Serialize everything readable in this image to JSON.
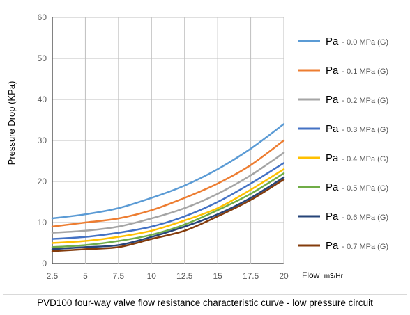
{
  "chart_data": {
    "type": "line",
    "title": "",
    "caption": "PVD100 four-way valve flow resistance characteristic curve - low pressure circuit",
    "xlabel": "Flow",
    "xlabel_unit": "m3/Hr",
    "ylabel": "Pressure Drop (KPa)",
    "xlim": [
      2.5,
      20
    ],
    "ylim": [
      0,
      60
    ],
    "x_ticks": [
      "2.5",
      "5",
      "7.5",
      "10",
      "12.5",
      "15",
      "17.5",
      "20"
    ],
    "y_ticks": [
      "0",
      "10",
      "20",
      "30",
      "40",
      "50",
      "60"
    ],
    "grid": true,
    "legend_position": "right",
    "x": [
      2.5,
      5,
      7.5,
      10,
      12.5,
      15,
      17.5,
      20
    ],
    "series": [
      {
        "name": "Pa - 0.0 MPa (G)",
        "pa": "Pa",
        "rest": " - 0.0 MPa (G)",
        "color": "#5b9bd5",
        "values": [
          11,
          12,
          13.5,
          16,
          19,
          23,
          28,
          34
        ]
      },
      {
        "name": "Pa - 0.1 MPa (G)",
        "pa": "Pa",
        "rest": " - 0.1 MPa  (G)",
        "color": "#ed7d31",
        "values": [
          9,
          10,
          11,
          13,
          16,
          19.5,
          24,
          30
        ]
      },
      {
        "name": "Pa - 0.2 MPa (G)",
        "pa": "Pa",
        "rest": " - 0.2 MPa (G)",
        "color": "#a5a5a5",
        "values": [
          7.5,
          8,
          9,
          11,
          13.5,
          17,
          21.5,
          27
        ]
      },
      {
        "name": "Pa - 0.3 MPa (G)",
        "pa": "Pa",
        "rest": " - 0.3 MPa (G)",
        "color": "#4472c4",
        "values": [
          6,
          6.5,
          7.5,
          9,
          11.5,
          15,
          19.5,
          24.5
        ]
      },
      {
        "name": "Pa - 0.4 MPa (G)",
        "pa": "Pa",
        "rest": " - 0.4 MPa (G)",
        "color": "#ffc000",
        "values": [
          5,
          5.5,
          6.5,
          8,
          10.5,
          13.5,
          18,
          23
        ]
      },
      {
        "name": "Pa - 0.5 MPa (G)",
        "pa": "Pa",
        "rest": " - 0.5 MPa (G)",
        "color": "#70ad47",
        "values": [
          4,
          4.5,
          5.5,
          7,
          9.5,
          13,
          17,
          22
        ]
      },
      {
        "name": "Pa - 0.6 MPa (G)",
        "pa": "Pa",
        "rest": " - 0.6 MPa (G)",
        "color": "#264478",
        "values": [
          3.5,
          4,
          4.5,
          6.5,
          9,
          12,
          16,
          21
        ]
      },
      {
        "name": "Pa - 0.7 MPa (G)",
        "pa": "Pa",
        "rest": " - 0.7 MPa (G)",
        "color": "#843c0c",
        "values": [
          3,
          3.5,
          4,
          6,
          8,
          11.5,
          15.5,
          20.5
        ]
      }
    ]
  }
}
